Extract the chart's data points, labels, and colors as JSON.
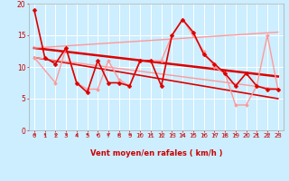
{
  "background_color": "#cceeff",
  "grid_color": "#ffffff",
  "xlabel": "Vent moyen/en rafales ( km/h )",
  "xlim": [
    -0.5,
    23.5
  ],
  "ylim": [
    0,
    20
  ],
  "xticks": [
    0,
    1,
    2,
    3,
    4,
    5,
    6,
    7,
    8,
    9,
    10,
    11,
    12,
    13,
    14,
    15,
    16,
    17,
    18,
    19,
    20,
    21,
    22,
    23
  ],
  "yticks": [
    0,
    5,
    10,
    15,
    20
  ],
  "series": [
    {
      "x": [
        0,
        1,
        2,
        3,
        4,
        5,
        6,
        7,
        8,
        9,
        10,
        11,
        12,
        13,
        14,
        15,
        16,
        17,
        18,
        19,
        20,
        21,
        22,
        23
      ],
      "y": [
        19,
        11.5,
        10.5,
        13,
        7.5,
        6,
        11,
        7.5,
        7.5,
        7,
        11,
        11,
        7,
        15,
        17.5,
        15.5,
        12,
        10.5,
        9,
        7,
        9,
        7,
        6.5,
        6.5
      ],
      "color": "#dd0000",
      "linewidth": 1.2,
      "marker": "D",
      "markersize": 2.5,
      "zorder": 4
    },
    {
      "x": [
        0,
        2,
        3,
        4,
        5,
        6,
        7,
        8,
        9,
        10,
        11,
        12,
        13,
        14,
        15,
        16,
        17,
        18,
        19,
        20,
        21,
        22,
        23
      ],
      "y": [
        11.5,
        7.5,
        13,
        7.5,
        6.5,
        6.5,
        11,
        8,
        7,
        11,
        11,
        11,
        15,
        17.5,
        15,
        12.5,
        10,
        9,
        4,
        4,
        7,
        15,
        6.5
      ],
      "color": "#ff9999",
      "linewidth": 1.0,
      "marker": "D",
      "markersize": 2.0,
      "zorder": 3
    },
    {
      "x": [
        0,
        23
      ],
      "y": [
        13,
        8.5
      ],
      "color": "#dd0000",
      "linewidth": 1.8,
      "marker": null,
      "markersize": 0,
      "zorder": 2
    },
    {
      "x": [
        0,
        23
      ],
      "y": [
        11.5,
        5.0
      ],
      "color": "#dd0000",
      "linewidth": 1.2,
      "marker": null,
      "markersize": 0,
      "zorder": 2
    },
    {
      "x": [
        0,
        23
      ],
      "y": [
        13,
        15.5
      ],
      "color": "#ff9999",
      "linewidth": 1.0,
      "marker": null,
      "markersize": 0,
      "zorder": 2
    },
    {
      "x": [
        0,
        23
      ],
      "y": [
        11.5,
        6.5
      ],
      "color": "#ff9999",
      "linewidth": 1.0,
      "marker": null,
      "markersize": 0,
      "zorder": 2
    }
  ],
  "xlabel_color": "#cc0000",
  "tick_color": "#cc0000",
  "tick_fontsize": 5.0,
  "xlabel_fontsize": 6.0
}
